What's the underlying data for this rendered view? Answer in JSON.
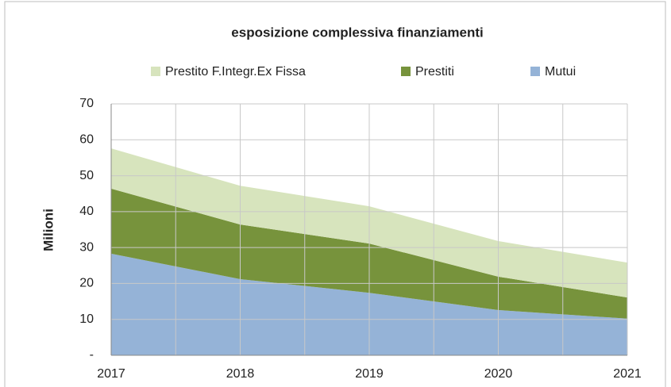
{
  "chart_data": {
    "type": "stacked_area",
    "title": "esposizione complessiva finanziamenti",
    "y_label": "Milioni",
    "x": [
      2017,
      2018,
      2019,
      2020,
      2021
    ],
    "xlim": [
      2017,
      2021
    ],
    "xticks": [
      2017,
      2018,
      2019,
      2020,
      2021
    ],
    "ylim": [
      0,
      70
    ],
    "yticks": [
      {
        "value": 0,
        "label": "-"
      },
      10,
      20,
      30,
      40,
      50,
      60,
      70
    ],
    "grid": true,
    "legend": "top",
    "series": [
      {
        "name": "Prestito F.Integr.Ex Fissa",
        "color": "#d7e4bd",
        "values": [
          11.2,
          10.8,
          10.4,
          9.9,
          9.7
        ]
      },
      {
        "name": "Prestiti",
        "color": "#77933c",
        "values": [
          18.1,
          15.2,
          13.7,
          9.3,
          5.9
        ]
      },
      {
        "name": "Mutui",
        "color": "#95b3d7",
        "values": [
          28.3,
          21.2,
          17.4,
          12.6,
          10.2
        ]
      }
    ]
  }
}
